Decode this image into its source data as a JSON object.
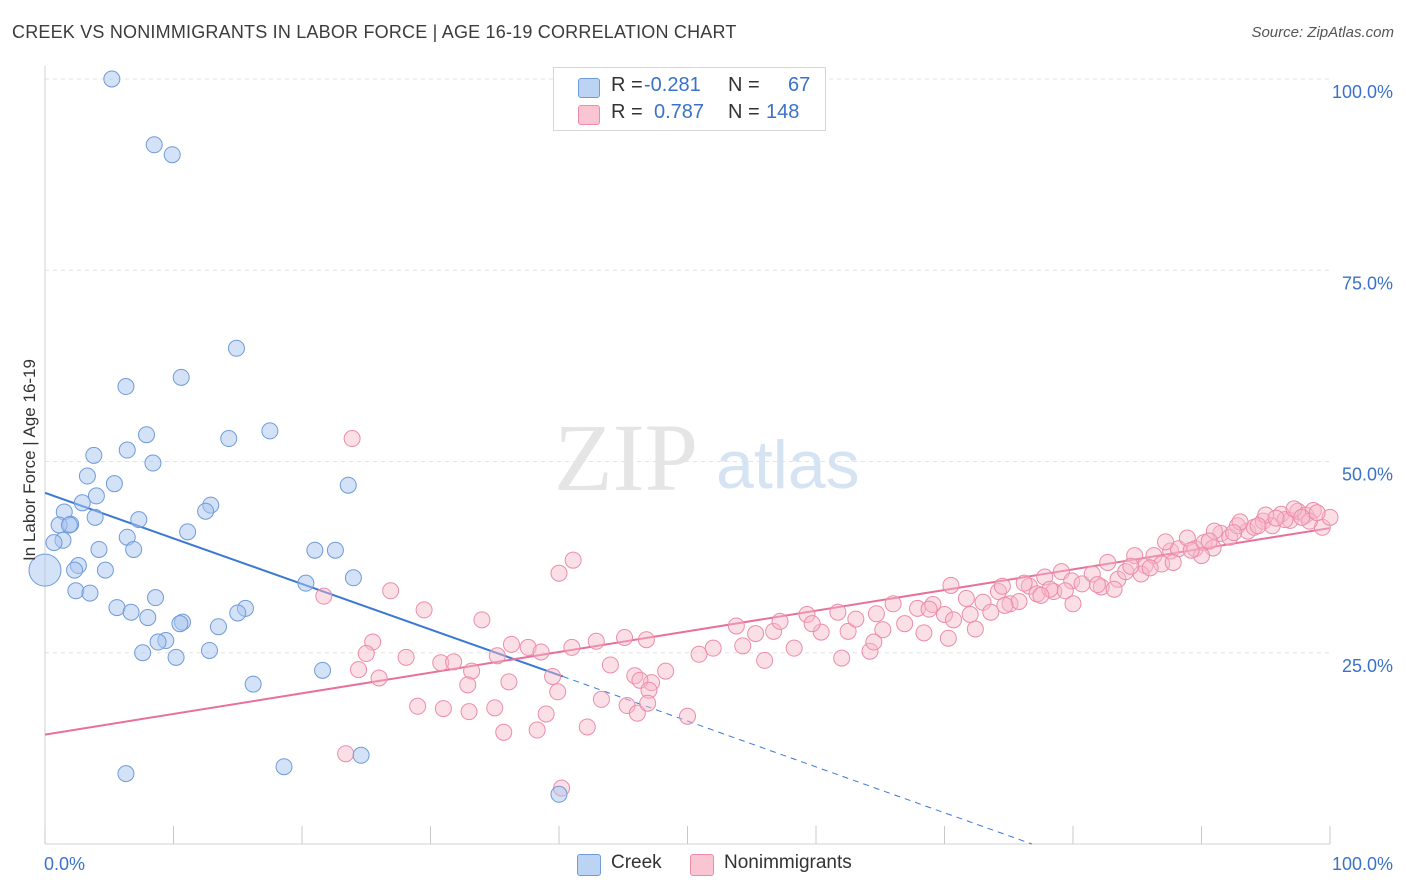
{
  "header": {
    "title": "CREEK VS NONIMMIGRANTS IN LABOR FORCE | AGE 16-19 CORRELATION CHART",
    "source": "Source: ZipAtlas.com"
  },
  "watermark": {
    "zip": "ZIP",
    "atlas": "atlas"
  },
  "legend_top": {
    "rows": [
      {
        "r_label": "R =",
        "r_value": "-0.281",
        "n_label": "N =",
        "n_value": "67"
      },
      {
        "r_label": "R =",
        "r_value": "0.787",
        "n_label": "N =",
        "n_value": "148"
      }
    ]
  },
  "legend_bottom": {
    "creek": "Creek",
    "nonimmigrants": "Nonimmigrants"
  },
  "colors": {
    "creek_fill": "#a9c6ef",
    "creek_stroke": "#6f9bd9",
    "creek_line": "#3a78d4",
    "nonimm_fill": "#f7b9ca",
    "nonimm_stroke": "#ec8ca8",
    "nonimm_line": "#e8709a",
    "tick_label": "#3b72c9",
    "grid": "#e3e3e3"
  },
  "chart_data": {
    "type": "scatter",
    "title": "CREEK VS NONIMMIGRANTS IN LABOR FORCE | AGE 16-19 CORRELATION CHART",
    "xlabel": "",
    "ylabel": "In Labor Force | Age 16-19",
    "xlim": [
      0,
      100
    ],
    "ylim": [
      0,
      100
    ],
    "x_tick_labels": [
      "0.0%",
      "100.0%"
    ],
    "y_ticks": [
      25,
      50,
      75,
      100
    ],
    "y_tick_labels": [
      "25.0%",
      "50.0%",
      "75.0%",
      "100.0%"
    ],
    "grid": true,
    "legend_position": "top-center",
    "series": [
      {
        "name": "Creek",
        "r": -0.281,
        "n": 67,
        "trend": {
          "x": [
            0,
            40.3
          ],
          "y": [
            45.9,
            21.9
          ],
          "dashed_to": [
            76.8,
            0
          ]
        },
        "points": [
          [
            5.2,
            100.0
          ],
          [
            8.5,
            91.4
          ],
          [
            9.9,
            90.1
          ],
          [
            14.9,
            64.8
          ],
          [
            6.3,
            59.8
          ],
          [
            10.6,
            61.0
          ],
          [
            7.9,
            53.5
          ],
          [
            14.3,
            53.0
          ],
          [
            17.5,
            54.0
          ],
          [
            6.4,
            51.5
          ],
          [
            3.8,
            50.8
          ],
          [
            8.4,
            49.8
          ],
          [
            3.3,
            48.1
          ],
          [
            5.4,
            47.1
          ],
          [
            23.6,
            46.9
          ],
          [
            4.0,
            45.5
          ],
          [
            2.9,
            44.6
          ],
          [
            12.9,
            44.3
          ],
          [
            12.5,
            43.5
          ],
          [
            1.5,
            43.4
          ],
          [
            3.9,
            42.7
          ],
          [
            7.3,
            42.4
          ],
          [
            2.0,
            41.8
          ],
          [
            1.1,
            41.7
          ],
          [
            1.9,
            41.7
          ],
          [
            11.1,
            40.8
          ],
          [
            6.4,
            40.1
          ],
          [
            1.4,
            39.7
          ],
          [
            0.7,
            39.4
          ],
          [
            4.2,
            38.5
          ],
          [
            6.9,
            38.5
          ],
          [
            21.0,
            38.4
          ],
          [
            22.6,
            38.4
          ],
          [
            2.6,
            36.4
          ],
          [
            4.7,
            35.8
          ],
          [
            2.3,
            35.8
          ],
          [
            0.0,
            35.8
          ],
          [
            24.0,
            34.8
          ],
          [
            20.3,
            34.1
          ],
          [
            2.4,
            33.1
          ],
          [
            3.5,
            32.8
          ],
          [
            8.6,
            32.2
          ],
          [
            5.6,
            30.9
          ],
          [
            15.6,
            30.8
          ],
          [
            6.7,
            30.3
          ],
          [
            15.0,
            30.2
          ],
          [
            8.0,
            29.6
          ],
          [
            10.7,
            29.0
          ],
          [
            10.5,
            28.8
          ],
          [
            13.5,
            28.4
          ],
          [
            9.4,
            26.6
          ],
          [
            8.8,
            26.4
          ],
          [
            7.6,
            25.0
          ],
          [
            12.8,
            25.3
          ],
          [
            10.2,
            24.4
          ],
          [
            21.6,
            22.7
          ],
          [
            16.2,
            20.9
          ],
          [
            24.6,
            11.6
          ],
          [
            18.6,
            10.1
          ],
          [
            6.3,
            9.2
          ],
          [
            40.0,
            6.5
          ]
        ]
      },
      {
        "name": "Nonimmigrants",
        "r": 0.787,
        "n": 148,
        "trend": {
          "x": [
            0,
            100
          ],
          "y": [
            14.3,
            41.3
          ]
        },
        "points": [
          [
            23.9,
            53.0
          ],
          [
            41.1,
            37.1
          ],
          [
            40.0,
            35.4
          ],
          [
            34.0,
            29.3
          ],
          [
            26.9,
            33.1
          ],
          [
            29.5,
            30.6
          ],
          [
            21.7,
            32.4
          ],
          [
            25.5,
            26.4
          ],
          [
            36.3,
            26.1
          ],
          [
            37.6,
            25.7
          ],
          [
            38.6,
            25.1
          ],
          [
            41.0,
            25.7
          ],
          [
            42.9,
            26.5
          ],
          [
            45.1,
            27.0
          ],
          [
            46.8,
            26.7
          ],
          [
            25.0,
            24.9
          ],
          [
            28.1,
            24.4
          ],
          [
            30.8,
            23.7
          ],
          [
            33.2,
            22.6
          ],
          [
            35.2,
            24.6
          ],
          [
            24.4,
            22.8
          ],
          [
            26.0,
            21.7
          ],
          [
            31.8,
            23.8
          ],
          [
            36.1,
            21.2
          ],
          [
            39.5,
            21.9
          ],
          [
            44.0,
            23.4
          ],
          [
            45.9,
            22.0
          ],
          [
            47.2,
            21.1
          ],
          [
            48.3,
            22.6
          ],
          [
            50.9,
            24.8
          ],
          [
            52.0,
            25.6
          ],
          [
            54.3,
            25.9
          ],
          [
            53.8,
            28.5
          ],
          [
            55.3,
            27.5
          ],
          [
            56.7,
            27.8
          ],
          [
            57.2,
            29.1
          ],
          [
            58.3,
            25.6
          ],
          [
            59.3,
            30.0
          ],
          [
            60.4,
            27.7
          ],
          [
            61.7,
            30.3
          ],
          [
            62.5,
            27.8
          ],
          [
            63.1,
            29.4
          ],
          [
            64.2,
            25.2
          ],
          [
            64.7,
            30.1
          ],
          [
            65.2,
            28.0
          ],
          [
            66.0,
            31.4
          ],
          [
            66.9,
            28.8
          ],
          [
            67.9,
            30.8
          ],
          [
            68.4,
            27.6
          ],
          [
            69.1,
            31.3
          ],
          [
            70.0,
            30.0
          ],
          [
            70.7,
            29.3
          ],
          [
            71.7,
            32.1
          ],
          [
            72.4,
            28.1
          ],
          [
            73.0,
            31.6
          ],
          [
            73.6,
            30.3
          ],
          [
            74.2,
            33.0
          ],
          [
            75.1,
            31.4
          ],
          [
            75.8,
            31.7
          ],
          [
            76.6,
            33.7
          ],
          [
            77.2,
            32.7
          ],
          [
            77.8,
            34.9
          ],
          [
            78.5,
            33.0
          ],
          [
            79.1,
            35.6
          ],
          [
            79.9,
            34.4
          ],
          [
            80.7,
            34.0
          ],
          [
            81.5,
            35.3
          ],
          [
            82.2,
            33.6
          ],
          [
            82.7,
            36.8
          ],
          [
            83.5,
            34.6
          ],
          [
            84.1,
            35.6
          ],
          [
            84.8,
            37.7
          ],
          [
            85.6,
            36.4
          ],
          [
            86.3,
            37.7
          ],
          [
            86.9,
            36.6
          ],
          [
            87.6,
            38.3
          ],
          [
            88.2,
            38.6
          ],
          [
            88.9,
            40.0
          ],
          [
            89.5,
            38.6
          ],
          [
            90.2,
            39.4
          ],
          [
            90.9,
            38.7
          ],
          [
            91.5,
            40.6
          ],
          [
            92.2,
            40.1
          ],
          [
            92.8,
            41.6
          ],
          [
            93.6,
            40.9
          ],
          [
            94.1,
            41.4
          ],
          [
            94.8,
            42.2
          ],
          [
            95.5,
            41.6
          ],
          [
            96.2,
            43.1
          ],
          [
            96.9,
            42.3
          ],
          [
            97.5,
            43.5
          ],
          [
            98.1,
            43.0
          ],
          [
            98.7,
            43.6
          ],
          [
            99.4,
            41.4
          ],
          [
            100.0,
            42.7
          ],
          [
            70.5,
            33.8
          ],
          [
            74.5,
            33.7
          ],
          [
            78.2,
            33.3
          ],
          [
            80.0,
            31.4
          ],
          [
            83.2,
            33.3
          ],
          [
            85.3,
            35.3
          ],
          [
            87.8,
            36.8
          ],
          [
            90.0,
            37.7
          ],
          [
            91.0,
            40.9
          ],
          [
            93.0,
            42.1
          ],
          [
            95.0,
            43.0
          ],
          [
            96.5,
            42.4
          ],
          [
            97.2,
            43.8
          ],
          [
            98.4,
            42.2
          ],
          [
            99.0,
            43.3
          ],
          [
            56.0,
            24.0
          ],
          [
            59.7,
            28.8
          ],
          [
            62.0,
            24.3
          ],
          [
            64.5,
            26.4
          ],
          [
            68.8,
            30.7
          ],
          [
            70.3,
            26.9
          ],
          [
            72.0,
            30.0
          ],
          [
            74.7,
            31.2
          ],
          [
            76.2,
            34.1
          ],
          [
            77.5,
            32.5
          ],
          [
            79.4,
            33.1
          ],
          [
            81.9,
            33.9
          ],
          [
            84.5,
            36.3
          ],
          [
            86.0,
            36.1
          ],
          [
            87.2,
            39.5
          ],
          [
            89.2,
            38.4
          ],
          [
            90.6,
            39.6
          ],
          [
            92.5,
            40.7
          ],
          [
            94.4,
            41.6
          ],
          [
            95.8,
            42.6
          ],
          [
            97.8,
            42.7
          ],
          [
            43.3,
            18.9
          ],
          [
            46.3,
            21.4
          ],
          [
            47.0,
            20.1
          ],
          [
            45.3,
            18.1
          ],
          [
            46.1,
            17.1
          ],
          [
            39.0,
            17.0
          ],
          [
            29.0,
            18.0
          ],
          [
            31.0,
            17.7
          ],
          [
            33.0,
            17.3
          ],
          [
            35.0,
            17.8
          ],
          [
            35.7,
            14.6
          ],
          [
            38.3,
            14.9
          ],
          [
            23.4,
            11.8
          ],
          [
            32.9,
            20.8
          ],
          [
            40.2,
            7.3
          ],
          [
            46.9,
            18.4
          ],
          [
            50.0,
            16.7
          ],
          [
            39.9,
            19.9
          ],
          [
            42.2,
            15.3
          ]
        ]
      }
    ]
  }
}
